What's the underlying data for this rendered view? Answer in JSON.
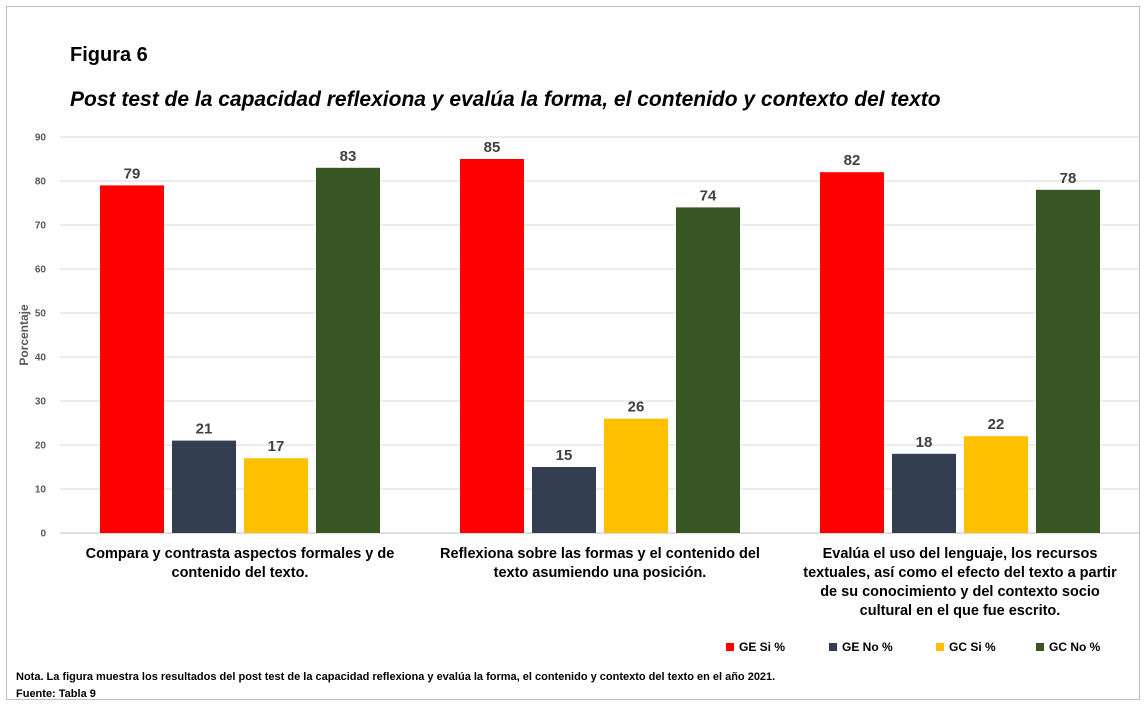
{
  "figure_label": "Figura 6",
  "figure_title": "Post test de la capacidad reflexiona y evalúa la forma, el contenido y contexto del texto",
  "note": "Nota. La figura muestra los resultados del post test de la capacidad reflexiona y evalúa la forma, el contenido y contexto del texto en el año 2021.",
  "source": "Fuente: Tabla 9",
  "chart_data": {
    "type": "bar",
    "title": "Post test de la capacidad reflexiona y evalúa la forma, el contenido y contexto del texto",
    "xlabel": "",
    "ylabel": "Porcentaje",
    "ylim": [
      0,
      90
    ],
    "yticks": [
      0,
      10,
      20,
      30,
      40,
      50,
      60,
      70,
      80,
      90
    ],
    "grid": true,
    "legend_position": "bottom-right",
    "categories": [
      [
        "Compara y contrasta aspectos formales y de",
        "contenido del texto."
      ],
      [
        "Reflexiona sobre las formas y el contenido del",
        "texto asumiendo una posición."
      ],
      [
        "Evalúa el uso del lenguaje, los recursos",
        "textuales, así como el efecto del texto a partir",
        "de su conocimiento y del contexto socio",
        "cultural en el que fue escrito."
      ]
    ],
    "series": [
      {
        "name": "GE Si %",
        "color": "#ff0000",
        "values": [
          79,
          85,
          82
        ]
      },
      {
        "name": "GE No %",
        "color": "#333f50",
        "values": [
          21,
          15,
          18
        ]
      },
      {
        "name": "GC Si %",
        "color": "#ffc000",
        "values": [
          17,
          26,
          22
        ]
      },
      {
        "name": "GC No %",
        "color": "#375623",
        "values": [
          83,
          74,
          78
        ]
      }
    ]
  }
}
